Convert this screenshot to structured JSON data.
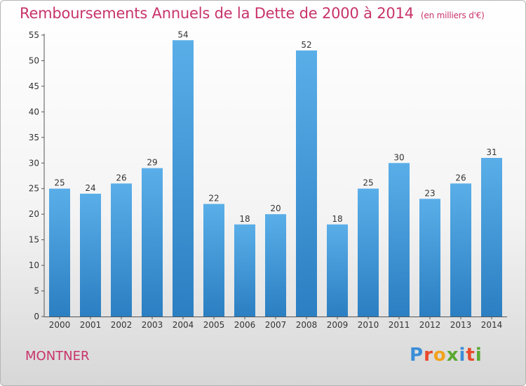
{
  "title": "Remboursements Annuels de la Dette de 2000 à 2014",
  "unit_note": "(en milliers d'€)",
  "town": "MONTNER",
  "logo": {
    "letters": [
      "P",
      "r",
      "o",
      "x",
      "i",
      "t",
      "i"
    ],
    "colors": [
      "#3b8ed8",
      "#e84a2c",
      "#f2a21b",
      "#5aa832",
      "#3b8ed8",
      "#e84a2c",
      "#5aa832"
    ]
  },
  "colors": {
    "bar_top": "#5aaee8",
    "bar_bottom": "#2b7fc2",
    "accent": "#c8336b"
  },
  "chart_data": {
    "type": "bar",
    "categories": [
      "2000",
      "2001",
      "2002",
      "2003",
      "2004",
      "2005",
      "2006",
      "2007",
      "2008",
      "2009",
      "2010",
      "2011",
      "2012",
      "2013",
      "2014"
    ],
    "values": [
      25,
      24,
      26,
      29,
      54,
      22,
      18,
      20,
      52,
      18,
      25,
      30,
      23,
      26,
      31
    ],
    "ylim": [
      0,
      55
    ],
    "yticks": [
      0,
      5,
      10,
      15,
      20,
      25,
      30,
      35,
      40,
      45,
      50,
      55
    ],
    "grid": false,
    "data_labels": true
  }
}
